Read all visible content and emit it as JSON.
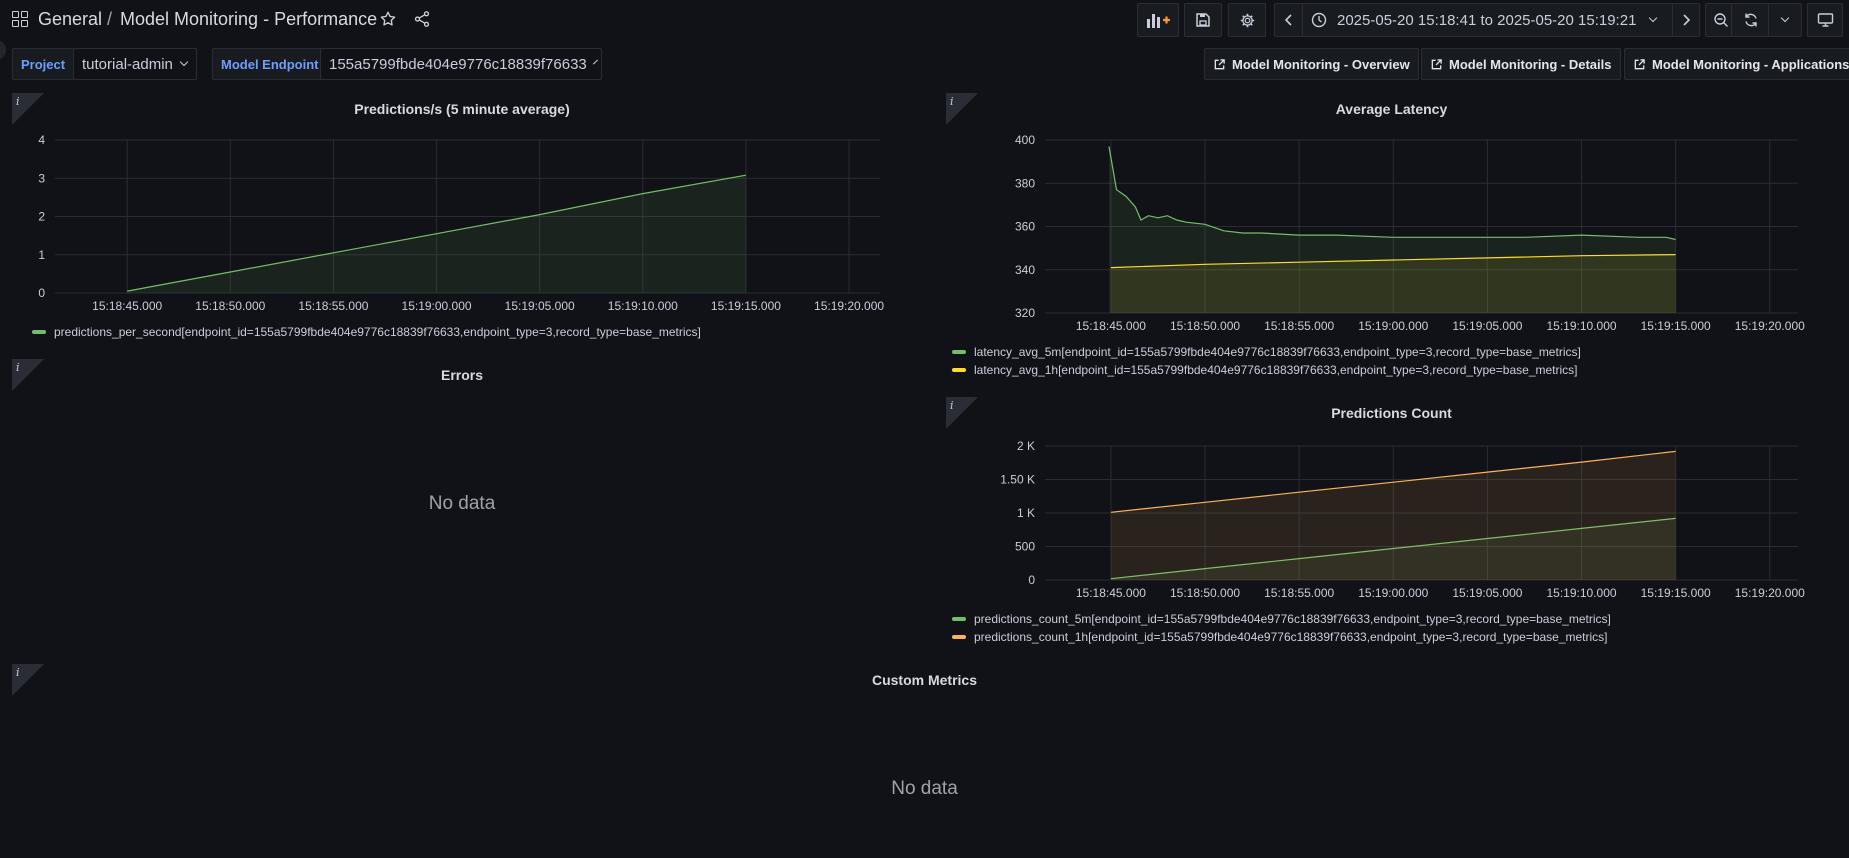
{
  "header": {
    "folder": "General",
    "separator": "/",
    "title": "Model Monitoring - Performance",
    "time_range": "2025-05-20 15:18:41 to 2025-05-20 15:19:21"
  },
  "variables": {
    "project": {
      "label": "Project",
      "value": "tutorial-admin"
    },
    "endpoint": {
      "label": "Model Endpoint",
      "value": "155a5799fbde404e9776c18839f76633"
    }
  },
  "links": [
    {
      "label": "Model Monitoring - Overview"
    },
    {
      "label": "Model Monitoring - Details"
    },
    {
      "label": "Model Monitoring - Applications"
    }
  ],
  "colors": {
    "green": "#73bf69",
    "yellow": "#fade2a",
    "orange": "#ffb357",
    "background": "#111217",
    "accent": "#6e9fff"
  },
  "panels": {
    "predictions": {
      "info": "i",
      "title": "Predictions/s (5 minute average)"
    },
    "latency": {
      "info": "i",
      "title": "Average Latency"
    },
    "errors": {
      "info": "i",
      "title": "Errors",
      "nodata": "No data"
    },
    "count": {
      "info": "i",
      "title": "Predictions Count"
    },
    "custom": {
      "info": "i",
      "title": "Custom Metrics",
      "nodata": "No data"
    }
  },
  "chart_data": [
    {
      "id": "predictions",
      "type": "area",
      "title": "Predictions/s (5 minute average)",
      "x_ticks": [
        "15:18:45.000",
        "15:18:50.000",
        "15:18:55.000",
        "15:19:00.000",
        "15:19:05.000",
        "15:19:10.000",
        "15:19:15.000",
        "15:19:20.000"
      ],
      "y_ticks": [
        "0",
        "1",
        "2",
        "3",
        "4"
      ],
      "ylim": [
        0,
        4
      ],
      "xlim_seconds_after_15_18_45": [
        -3.5,
        36.5
      ],
      "series": [
        {
          "name": "predictions_per_second[endpoint_id=155a5799fbde404e9776c18839f76633,endpoint_type=3,record_type=base_metrics]",
          "color": "#73bf69",
          "x": [
            0,
            5,
            10,
            15,
            20,
            25,
            30
          ],
          "y": [
            0.05,
            0.55,
            1.05,
            1.55,
            2.05,
            2.6,
            3.08
          ]
        }
      ],
      "grid": true,
      "legend": "bottom"
    },
    {
      "id": "latency",
      "type": "area",
      "title": "Average Latency",
      "x_ticks": [
        "15:18:45.000",
        "15:18:50.000",
        "15:18:55.000",
        "15:19:00.000",
        "15:19:05.000",
        "15:19:10.000",
        "15:19:15.000",
        "15:19:20.000"
      ],
      "y_ticks": [
        "320",
        "340",
        "360",
        "380",
        "400"
      ],
      "ylim": [
        320,
        400
      ],
      "xlim_seconds_after_15_18_45": [
        -3.5,
        36.5
      ],
      "series": [
        {
          "name": "latency_avg_5m[endpoint_id=155a5799fbde404e9776c18839f76633,endpoint_type=3,record_type=base_metrics]",
          "color": "#73bf69",
          "x": [
            -0.1,
            0.3,
            0.8,
            1.3,
            1.6,
            2,
            2.5,
            3,
            3.5,
            4,
            5,
            6,
            7,
            8,
            10,
            12,
            15,
            18,
            20,
            22,
            25,
            28,
            29.5,
            30
          ],
          "y": [
            397,
            377,
            374,
            369,
            363,
            365,
            364,
            365,
            363,
            362,
            361,
            358,
            357,
            357,
            356,
            356,
            355,
            355,
            355,
            355,
            356,
            355,
            355,
            354
          ]
        },
        {
          "name": "latency_avg_1h[endpoint_id=155a5799fbde404e9776c18839f76633,endpoint_type=3,record_type=base_metrics]",
          "color": "#fade2a",
          "x": [
            0,
            5,
            10,
            15,
            20,
            25,
            30
          ],
          "y": [
            341,
            342.5,
            343.5,
            344.5,
            345.5,
            346.5,
            347
          ]
        }
      ],
      "grid": true,
      "legend": "bottom"
    },
    {
      "id": "count",
      "type": "area",
      "title": "Predictions Count",
      "x_ticks": [
        "15:18:45.000",
        "15:18:50.000",
        "15:18:55.000",
        "15:19:00.000",
        "15:19:05.000",
        "15:19:10.000",
        "15:19:15.000",
        "15:19:20.000"
      ],
      "y_ticks": [
        "0",
        "500",
        "1 K",
        "1.50 K",
        "2 K"
      ],
      "ylim": [
        0,
        2000
      ],
      "xlim_seconds_after_15_18_45": [
        -3.5,
        36.5
      ],
      "series": [
        {
          "name": "predictions_count_5m[endpoint_id=155a5799fbde404e9776c18839f76633,endpoint_type=3,record_type=base_metrics]",
          "color": "#73bf69",
          "x": [
            0,
            5,
            10,
            15,
            20,
            25,
            30
          ],
          "y": [
            20,
            170,
            320,
            470,
            620,
            770,
            920
          ]
        },
        {
          "name": "predictions_count_1h[endpoint_id=155a5799fbde404e9776c18839f76633,endpoint_type=3,record_type=base_metrics]",
          "color": "#ffb357",
          "x": [
            0,
            5,
            10,
            15,
            20,
            25,
            30
          ],
          "y": [
            1010,
            1160,
            1310,
            1460,
            1610,
            1760,
            1920
          ]
        }
      ],
      "grid": true,
      "legend": "bottom"
    }
  ]
}
